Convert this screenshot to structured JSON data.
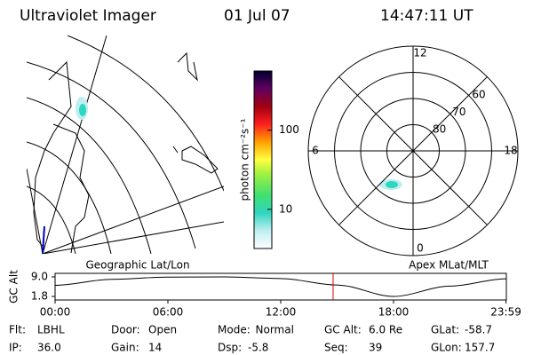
{
  "header": {
    "title": "Ultraviolet Imager",
    "date": "01 Jul 07",
    "time": "14:47:11 UT"
  },
  "colorbar": {
    "label": "photon cm⁻²s⁻¹",
    "scale": "log",
    "lim": [
      3.2,
      560
    ],
    "ticks": [
      10,
      100
    ]
  },
  "polar": {
    "rlim": [
      90,
      50
    ],
    "rticks": [
      80,
      70,
      60
    ],
    "mlt_ticks": [
      12,
      18,
      6,
      0
    ],
    "spokes": [
      0,
      3,
      6,
      9,
      12,
      15,
      18,
      21
    ]
  },
  "timeline": {
    "left_label": "Geographic Lat/Lon",
    "right_label": "Apex MLat/MLT",
    "ylabel": "GC Alt",
    "ylim": [
      1.8,
      9.0
    ],
    "yticks": [
      {
        "value": 9.0,
        "label": "9.0"
      },
      1.8
    ],
    "xlim": [
      0,
      24
    ],
    "xticks": [
      {
        "value": 0,
        "label": "00:00"
      },
      {
        "value": 6,
        "label": "06:00"
      },
      {
        "value": 12,
        "label": "12:00"
      },
      {
        "value": 18,
        "label": "18:00"
      },
      {
        "value": 23.98,
        "label": "23:59"
      }
    ],
    "x": [
      0,
      3,
      6,
      9,
      12,
      15,
      18,
      21,
      23.98
    ],
    "values": [
      5.9,
      8.1,
      8.9,
      9.0,
      8.4,
      6.0,
      1.8,
      5.6,
      8.3
    ],
    "marker": 14.786,
    "marker_color": "#e00000"
  },
  "footer": [
    [
      {
        "label": "Flt:",
        "value": "LBHL"
      },
      {
        "label": "Door:",
        "value": "Open"
      },
      {
        "label": "Mode:",
        "value": "Normal"
      },
      {
        "label": "GC Alt:",
        "value": "6.0 Re"
      },
      {
        "label": "GLat:",
        "value": "-58.7"
      }
    ],
    [
      {
        "label": "IP:",
        "value": "36.0"
      },
      {
        "label": "Gain:",
        "value": "14"
      },
      {
        "label": "Dsp:",
        "value": "-5.8"
      },
      {
        "label": "Seq:",
        "value": "39"
      },
      {
        "label": "GLon:",
        "value": "157.7"
      }
    ]
  ]
}
